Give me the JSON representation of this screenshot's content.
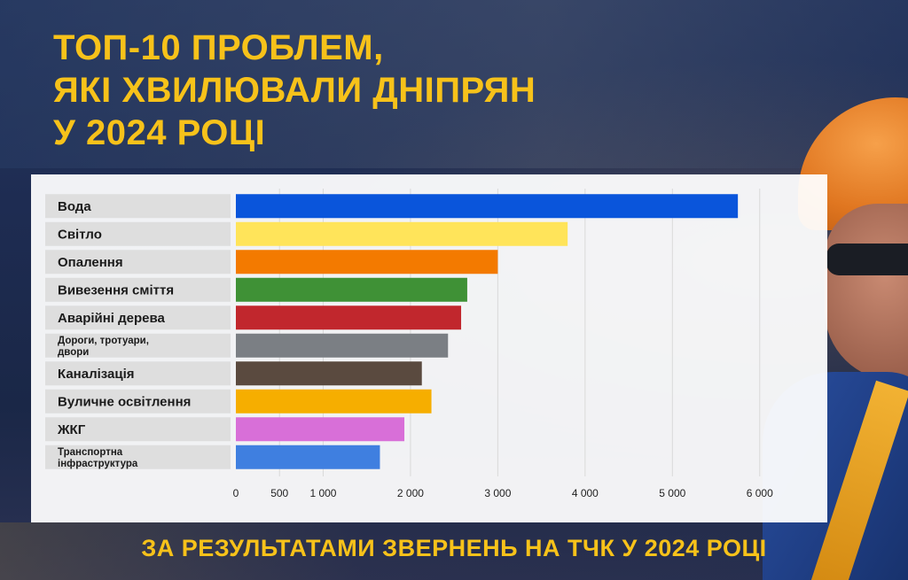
{
  "header": {
    "title_lines": [
      "ТОП-10 ПРОБЛЕМ,",
      "ЯКІ ХВИЛЮВАЛИ ДНІПРЯН",
      "У 2024 РОЦІ"
    ]
  },
  "footer": {
    "text": "ЗА РЕЗУЛЬТАТАМИ ЗВЕРНЕНЬ НА ТЧК У 2024 РОЦІ"
  },
  "chart_data": {
    "type": "bar",
    "orientation": "horizontal",
    "categories": [
      "Вода",
      "Світло",
      "Опалення",
      "Вивезення сміття",
      "Аварійні дерева",
      "Дороги, тротуари, двори",
      "Каналізація",
      "Вуличне освітлення",
      "ЖКГ",
      "Транспортна інфраструктура"
    ],
    "category_label_lines": [
      [
        "Вода"
      ],
      [
        "Світло"
      ],
      [
        "Опалення"
      ],
      [
        "Вивезення сміття"
      ],
      [
        "Аварійні дерева"
      ],
      [
        "Дороги, тротуари,",
        "двори"
      ],
      [
        "Каналізація"
      ],
      [
        "Вуличне освітлення"
      ],
      [
        "ЖКГ"
      ],
      [
        "Транспортна",
        "інфраструктура"
      ]
    ],
    "values": [
      5750,
      3800,
      3000,
      2650,
      2580,
      2430,
      2130,
      2240,
      1930,
      1650
    ],
    "colors": [
      "#0a55db",
      "#ffe45a",
      "#f37a00",
      "#3f9136",
      "#c1272d",
      "#7b7f84",
      "#5a4a3f",
      "#f6ae00",
      "#d86fd8",
      "#3f7fe0"
    ],
    "xlim": [
      0,
      6500
    ],
    "xticks": [
      0,
      500,
      1000,
      2000,
      3000,
      4000,
      5000,
      6000
    ],
    "xtick_labels": [
      "0",
      "500",
      "1 000",
      "2 000",
      "3 000",
      "4 000",
      "5 000",
      "6 000"
    ],
    "grid": true,
    "title": "",
    "xlabel": "",
    "ylabel": ""
  }
}
